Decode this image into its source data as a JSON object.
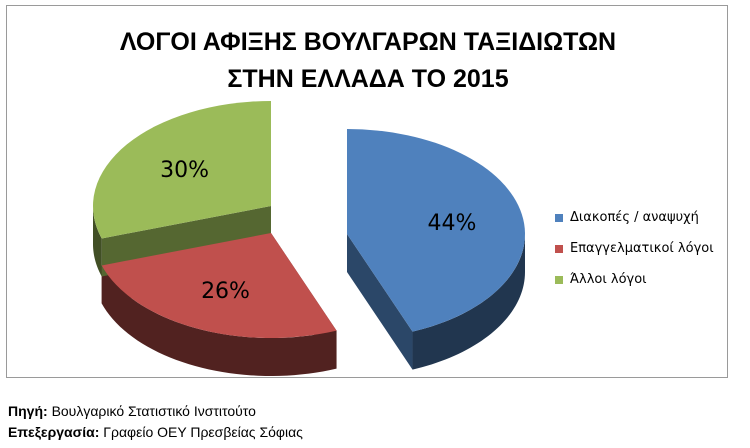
{
  "chart_data": {
    "type": "pie",
    "title_lines": [
      "ΛΟΓΟΙ ΑΦΙΞΗΣ ΒΟΥΛΓΑΡΩΝ ΤΑΞΙΔΙΩΤΩΝ",
      "ΣΤΗΝ ΕΛΛΑΔΑ ΤΟ 2015"
    ],
    "slices": [
      {
        "label": "Διακοπές / αναψυχή",
        "value": 44,
        "value_label": "44%",
        "color": "#4f81bd"
      },
      {
        "label": "Επαγγελματικοί λόγοι",
        "value": 26,
        "value_label": "26%",
        "color": "#c0504d"
      },
      {
        "label": "Άλλοι λόγοι",
        "value": 30,
        "value_label": "30%",
        "color": "#9bbb59"
      }
    ],
    "legend_position": "right",
    "style": "3d-exploded"
  },
  "footer": {
    "source_label": "Πηγή",
    "source_value": "Βουλγαρικό Στατιστικό Ινστιτούτο",
    "processing_label": "Επεξεργασία",
    "processing_value": "Γραφείο ΟΕΥ Πρεσβείας Σόφιας"
  }
}
